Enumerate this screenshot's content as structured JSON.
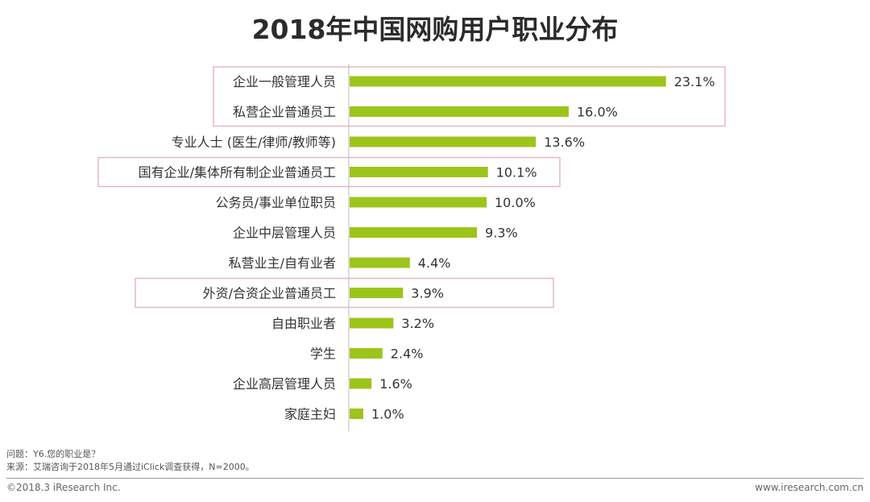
{
  "title": "2018年中国网购用户职业分布",
  "chart_data": {
    "type": "bar",
    "orientation": "horizontal",
    "title": "2018年中国网购用户职业分布",
    "categories": [
      "企业一般管理人员",
      "私营企业普通员工",
      "专业人士 (医生/律师/教师等)",
      "国有企业/集体所有制企业普通员工",
      "公务员/事业单位职员",
      "企业中层管理人员",
      "私营业主/自有业者",
      "外资/合资企业普通员工",
      "自由职业者",
      "学生",
      "企业高层管理人员",
      "家庭主妇"
    ],
    "values": [
      23.1,
      16.0,
      13.6,
      10.1,
      10.0,
      9.3,
      4.4,
      3.9,
      3.2,
      2.4,
      1.6,
      1.0
    ],
    "value_labels": [
      "23.1%",
      "16.0%",
      "13.6%",
      "10.1%",
      "10.0%",
      "9.3%",
      "4.4%",
      "3.9%",
      "3.2%",
      "2.4%",
      "1.6%",
      "1.0%"
    ],
    "highlighted_groups": [
      [
        0,
        1
      ],
      [
        3
      ],
      [
        7
      ]
    ],
    "bar_color": "#9dc41b",
    "highlight_color": "#e8b8be",
    "xlim": [
      0,
      25
    ],
    "grid": false
  },
  "footnotes": {
    "question": "问题：Y6.您的职业是？",
    "source": "来源：艾瑞咨询于2018年5月通过iClick调查获得，N=2000。"
  },
  "footer": {
    "copyright": "©2018.3 iResearch Inc.",
    "website": "www.iresearch.com.cn"
  }
}
